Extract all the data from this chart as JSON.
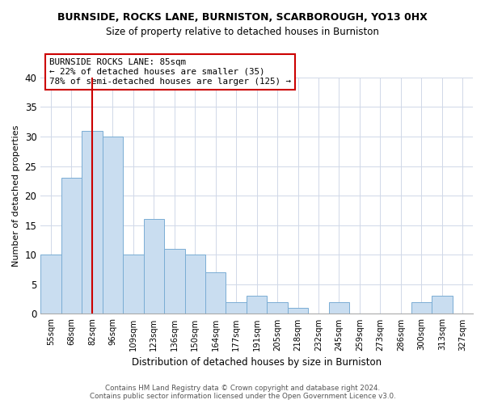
{
  "title1": "BURNSIDE, ROCKS LANE, BURNISTON, SCARBOROUGH, YO13 0HX",
  "title2": "Size of property relative to detached houses in Burniston",
  "xlabel": "Distribution of detached houses by size in Burniston",
  "ylabel": "Number of detached properties",
  "bin_labels": [
    "55sqm",
    "68sqm",
    "82sqm",
    "96sqm",
    "109sqm",
    "123sqm",
    "136sqm",
    "150sqm",
    "164sqm",
    "177sqm",
    "191sqm",
    "205sqm",
    "218sqm",
    "232sqm",
    "245sqm",
    "259sqm",
    "273sqm",
    "286sqm",
    "300sqm",
    "313sqm",
    "327sqm"
  ],
  "bar_heights": [
    10,
    23,
    31,
    30,
    10,
    16,
    11,
    10,
    7,
    2,
    3,
    2,
    1,
    0,
    2,
    0,
    0,
    0,
    2,
    3,
    0
  ],
  "bar_color": "#c9ddf0",
  "bar_edge_color": "#7aadd4",
  "vline_color": "#cc0000",
  "annotation_line1": "BURNSIDE ROCKS LANE: 85sqm",
  "annotation_line2": "← 22% of detached houses are smaller (35)",
  "annotation_line3": "78% of semi-detached houses are larger (125) →",
  "annotation_box_edgecolor": "#cc0000",
  "annotation_box_facecolor": "#ffffff",
  "ylim": [
    0,
    40
  ],
  "yticks": [
    0,
    5,
    10,
    15,
    20,
    25,
    30,
    35,
    40
  ],
  "footer_text": "Contains HM Land Registry data © Crown copyright and database right 2024.\nContains public sector information licensed under the Open Government Licence v3.0.",
  "bg_color": "#ffffff",
  "grid_color": "#d0d8e8"
}
